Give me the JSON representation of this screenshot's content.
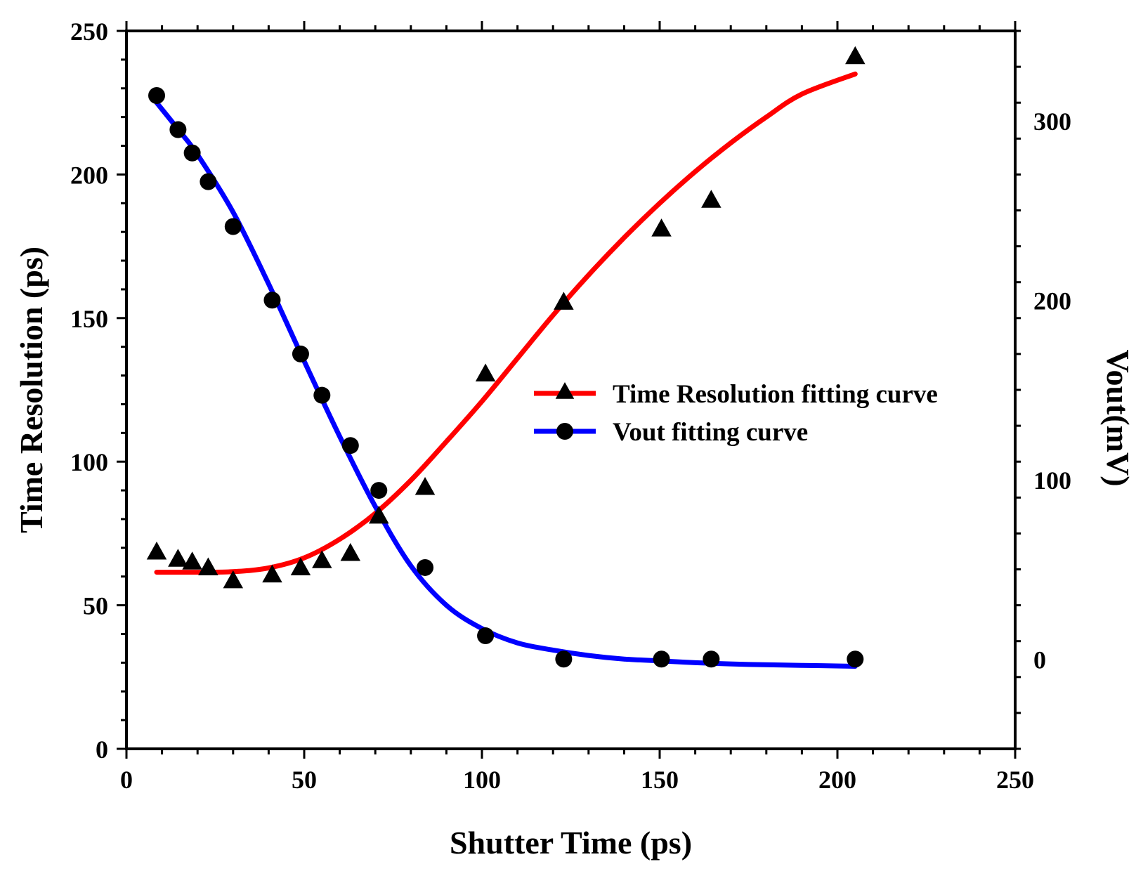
{
  "chart_data": {
    "type": "scatter",
    "title": "",
    "xlabel": "Shutter Time (ps)",
    "ylabel": "Time Resolution (ps)",
    "y2label": "Vout(mV)",
    "xlim": [
      0,
      250
    ],
    "ylim": [
      0,
      250
    ],
    "y2lim": [
      -50,
      350
    ],
    "xticks": [
      0,
      50,
      100,
      150,
      200,
      250
    ],
    "yticks": [
      0,
      50,
      100,
      150,
      200,
      250
    ],
    "y2ticks": [
      0,
      100,
      200,
      300
    ],
    "xtick_labels": [
      "0",
      "50",
      "100",
      "150",
      "200",
      "250"
    ],
    "ytick_labels": [
      "0",
      "50",
      "100",
      "150",
      "200",
      "250"
    ],
    "y2tick_labels": [
      "0",
      "100",
      "200",
      "300"
    ],
    "grid": false,
    "legend_position": "center-right",
    "series": [
      {
        "name": "Time Resolution fitting curve",
        "axis": "left",
        "marker": "triangle",
        "line_color": "#ff0000",
        "marker_color": "#000000",
        "x": [
          8.5,
          14.5,
          18.5,
          23,
          30,
          41,
          49,
          55,
          63,
          71,
          84,
          101,
          123,
          150.5,
          164.5,
          205
        ],
        "y": [
          68.5,
          66,
          65,
          63,
          58.5,
          60.5,
          63,
          65.5,
          68,
          81,
          91,
          130.5,
          155.5,
          181,
          191,
          241
        ],
        "fit_x": [
          8.5,
          20,
          30,
          40,
          50,
          60,
          70,
          80,
          90,
          100,
          110,
          120,
          130,
          140,
          150,
          160,
          170,
          180,
          190,
          205
        ],
        "fit_y": [
          61.5,
          61.5,
          61.7,
          63,
          66.5,
          73,
          82,
          93.5,
          107,
          121,
          136,
          151,
          165,
          178,
          190,
          201,
          211,
          220,
          228,
          235
        ]
      },
      {
        "name": "Vout fitting curve",
        "axis": "right",
        "marker": "circle",
        "line_color": "#0000ff",
        "marker_color": "#000000",
        "x": [
          8.5,
          14.5,
          18.5,
          23,
          30,
          41,
          49,
          55,
          63,
          71,
          84,
          101,
          123,
          150.5,
          164.5,
          205
        ],
        "y": [
          314,
          295,
          282,
          266,
          241,
          200,
          170,
          147,
          119,
          94,
          51,
          13,
          0,
          0,
          0,
          0
        ],
        "fit_x": [
          8.5,
          15,
          20,
          30,
          40,
          50,
          60,
          70,
          80,
          90,
          100,
          110,
          120,
          130,
          140,
          150,
          160,
          175,
          190,
          205
        ],
        "fit_y": [
          310,
          294,
          281,
          249,
          209,
          166,
          124,
          85,
          52,
          30,
          17,
          9,
          5,
          2,
          0,
          -1,
          -2,
          -3,
          -3.5,
          -4
        ]
      }
    ]
  }
}
